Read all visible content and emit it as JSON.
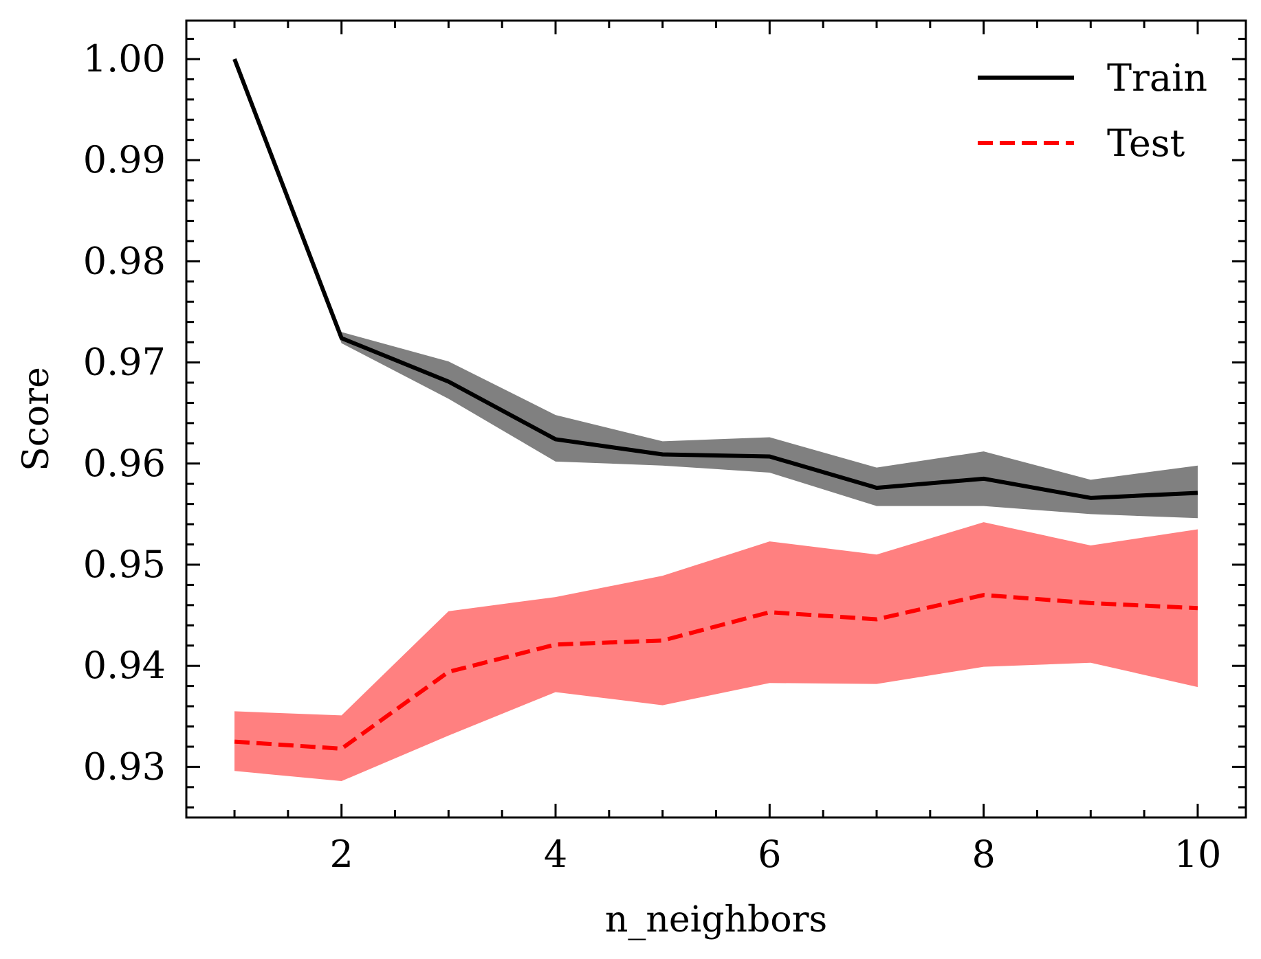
{
  "chart_data": {
    "type": "line",
    "title": "",
    "xlabel": "n_neighbors",
    "ylabel": "Score",
    "xlim": [
      0.55,
      10.45
    ],
    "ylim": [
      0.925,
      1.0038
    ],
    "xticks": [
      2,
      4,
      6,
      8,
      10
    ],
    "xtick_labels": [
      "2",
      "4",
      "6",
      "8",
      "10"
    ],
    "xminor_step": 0.5,
    "yticks": [
      0.93,
      0.94,
      0.95,
      0.96,
      0.97,
      0.98,
      0.99,
      1.0
    ],
    "ytick_labels": [
      "0.93",
      "0.94",
      "0.95",
      "0.96",
      "0.97",
      "0.98",
      "0.99",
      "1.00"
    ],
    "yminor_step": 0.002,
    "grid": false,
    "legend_position": "top-right",
    "x": [
      1,
      2,
      3,
      4,
      5,
      6,
      7,
      8,
      9,
      10
    ],
    "series": [
      {
        "name": "Train",
        "color": "#000000",
        "band_color": "#808080",
        "line_style": "solid",
        "values": [
          1.0,
          0.9724,
          0.9681,
          0.9624,
          0.9609,
          0.9607,
          0.9576,
          0.9585,
          0.9566,
          0.9571
        ],
        "lower": [
          1.0,
          0.9719,
          0.9664,
          0.9602,
          0.9598,
          0.9591,
          0.9558,
          0.9558,
          0.955,
          0.9546
        ],
        "upper": [
          1.0,
          0.973,
          0.9701,
          0.9648,
          0.9622,
          0.9626,
          0.9596,
          0.9612,
          0.9584,
          0.9598
        ]
      },
      {
        "name": "Test",
        "color": "#ff0000",
        "band_color": "#ff8080",
        "line_style": "dashed",
        "values": [
          0.9325,
          0.9318,
          0.9394,
          0.9421,
          0.9425,
          0.9453,
          0.9446,
          0.947,
          0.9462,
          0.9457
        ],
        "lower": [
          0.9296,
          0.9286,
          0.9331,
          0.9374,
          0.9361,
          0.9383,
          0.9382,
          0.9399,
          0.9403,
          0.9379
        ],
        "upper": [
          0.9355,
          0.9351,
          0.9454,
          0.9468,
          0.9489,
          0.9523,
          0.951,
          0.9542,
          0.9519,
          0.9535
        ]
      }
    ]
  }
}
